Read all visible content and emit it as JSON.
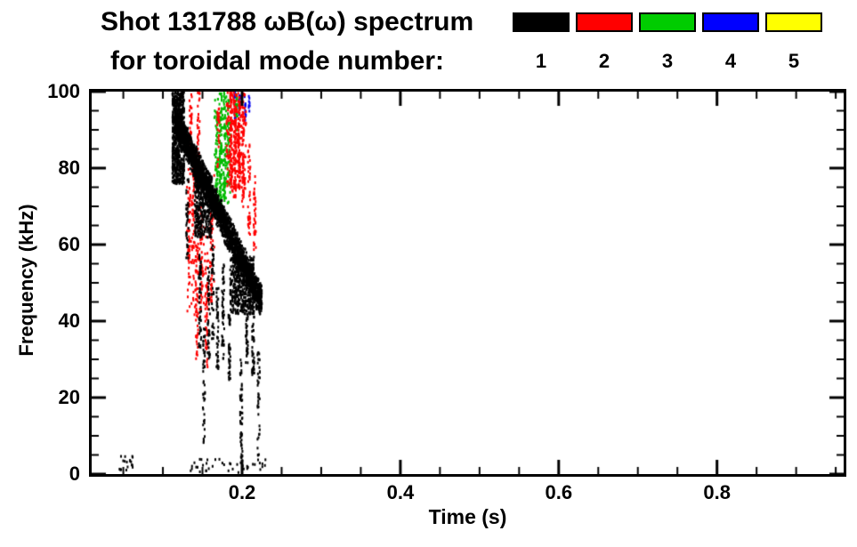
{
  "header": {
    "title_line1": "Shot 131788 ωB(ω) spectrum",
    "title_line2": "for toroidal mode number:"
  },
  "chart_data": {
    "type": "scatter",
    "title": "Shot 131788 ωB(ω) spectrum for toroidal mode number: 1 2 3 4 5",
    "xlabel": "Time (s)",
    "ylabel": "Frequency (kHz)",
    "xlim": [
      0.01,
      0.96
    ],
    "ylim": [
      0,
      100
    ],
    "xticks": [
      0.2,
      0.4,
      0.6,
      0.8
    ],
    "xtick_labels": [
      "0.2",
      "0.4",
      "0.6",
      "0.8"
    ],
    "yticks": [
      0,
      20,
      40,
      60,
      80,
      100
    ],
    "ytick_labels": [
      "0",
      "20",
      "40",
      "60",
      "80",
      "100"
    ],
    "x_minor_step": 0.05,
    "y_minor_step": 5,
    "grid": false,
    "legend_position": "top-right",
    "legend": [
      {
        "label": "1",
        "color": "#000000"
      },
      {
        "label": "2",
        "color": "#ff0000"
      },
      {
        "label": "3",
        "color": "#00cc00"
      },
      {
        "label": "4",
        "color": "#0000ff"
      },
      {
        "label": "5",
        "color": "#ffff00"
      }
    ],
    "series": [
      {
        "name": "n=1",
        "color": "#000000",
        "clusters": [
          {
            "type": "chirp",
            "t": [
              0.115,
              0.225
            ],
            "f": [
              93,
              45
            ],
            "width": 9,
            "n": 2800
          },
          {
            "type": "band",
            "t": [
              0.112,
              0.127
            ],
            "f": [
              76,
              100
            ],
            "n": 600
          },
          {
            "type": "band",
            "t": [
              0.14,
              0.162
            ],
            "f": [
              62,
              80
            ],
            "n": 400
          },
          {
            "type": "band",
            "t": [
              0.185,
              0.215
            ],
            "f": [
              42,
              57
            ],
            "n": 450
          },
          {
            "type": "streaks",
            "jitter": 0.0015,
            "items": [
              [
                0.131,
                55,
                78,
                40
              ],
              [
                0.147,
                33,
                58,
                55
              ],
              [
                0.152,
                8,
                40,
                45
              ],
              [
                0.158,
                30,
                55,
                45
              ],
              [
                0.163,
                35,
                60,
                40
              ],
              [
                0.169,
                27,
                50,
                45
              ],
              [
                0.176,
                30,
                55,
                50
              ],
              [
                0.184,
                24,
                42,
                40
              ],
              [
                0.199,
                3,
                30,
                55
              ],
              [
                0.206,
                27,
                42,
                35
              ],
              [
                0.214,
                26,
                44,
                45
              ],
              [
                0.221,
                5,
                32,
                40
              ]
            ]
          },
          {
            "type": "band",
            "t": [
              0.045,
              0.062
            ],
            "f": [
              1,
              5
            ],
            "n": 18
          },
          {
            "type": "band",
            "t": [
              0.135,
              0.23
            ],
            "f": [
              0.5,
              4
            ],
            "n": 40
          }
        ]
      },
      {
        "name": "n=2",
        "color": "#ff0000",
        "clusters": [
          {
            "type": "streaks",
            "jitter": 0.0015,
            "items": [
              [
                0.133,
                45,
                75,
                45
              ],
              [
                0.138,
                55,
                85,
                40
              ],
              [
                0.143,
                30,
                60,
                45
              ],
              [
                0.149,
                40,
                70,
                40
              ],
              [
                0.155,
                28,
                50,
                40
              ],
              [
                0.161,
                45,
                72,
                35
              ],
              [
                0.17,
                80,
                97,
                30
              ],
              [
                0.186,
                75,
                100,
                65
              ],
              [
                0.191,
                72,
                100,
                75
              ],
              [
                0.196,
                75,
                100,
                65
              ],
              [
                0.201,
                70,
                95,
                50
              ],
              [
                0.209,
                62,
                88,
                40
              ],
              [
                0.216,
                58,
                80,
                35
              ],
              [
                0.135,
                85,
                100,
                35
              ],
              [
                0.145,
                80,
                100,
                30
              ]
            ]
          },
          {
            "type": "band",
            "t": [
              0.13,
              0.165
            ],
            "f": [
              40,
              80
            ],
            "n": 140
          },
          {
            "type": "band",
            "t": [
              0.18,
              0.205
            ],
            "f": [
              74,
              100
            ],
            "n": 220
          }
        ]
      },
      {
        "name": "n=3",
        "color": "#00bb00",
        "clusters": [
          {
            "type": "streaks",
            "jitter": 0.0015,
            "items": [
              [
                0.168,
                70,
                95,
                45
              ],
              [
                0.173,
                68,
                100,
                85
              ],
              [
                0.178,
                72,
                100,
                65
              ],
              [
                0.183,
                75,
                98,
                40
              ],
              [
                0.193,
                90,
                100,
                22
              ]
            ]
          },
          {
            "type": "band",
            "t": [
              0.165,
              0.186
            ],
            "f": [
              70,
              100
            ],
            "n": 110
          }
        ]
      },
      {
        "name": "n=4",
        "color": "#0000ee",
        "clusters": [
          {
            "type": "streaks",
            "jitter": 0.001,
            "items": [
              [
                0.191,
                93,
                100,
                14
              ],
              [
                0.197,
                94,
                100,
                12
              ],
              [
                0.204,
                92,
                100,
                12
              ],
              [
                0.209,
                95,
                100,
                8
              ]
            ]
          }
        ]
      },
      {
        "name": "n=5",
        "color": "#ffff00",
        "clusters": []
      }
    ]
  }
}
